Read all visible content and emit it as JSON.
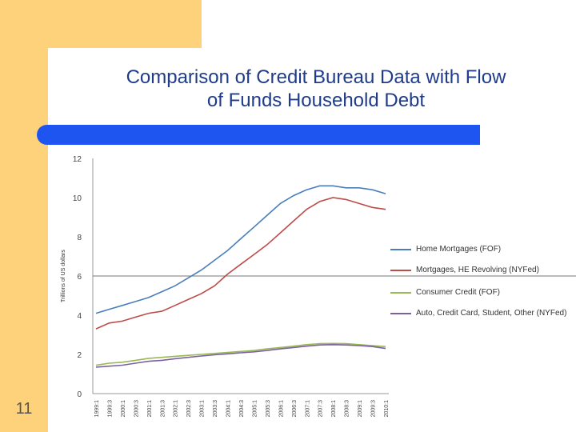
{
  "slide": {
    "title_line1": "Comparison of Credit Bureau Data with Flow",
    "title_line2": "of Funds Household Debt",
    "number": "11"
  },
  "colors": {
    "accent_yellow": "#fdd27a",
    "title_blue": "#1f3c8a",
    "rule_blue": "#1e55f0",
    "series_blue": "#4a7ebb",
    "series_red": "#be4b48",
    "series_green": "#98b954",
    "series_purple": "#7d60a0"
  },
  "chart_data": {
    "type": "line",
    "ylabel": "Trillions of US dollars",
    "ylim": [
      0,
      12
    ],
    "yticks": [
      0,
      2,
      4,
      6,
      8,
      10,
      12
    ],
    "grid": "single horizontal line at 6",
    "legend_position": "right",
    "categories": [
      "1999:1",
      "1999:3",
      "2000:1",
      "2000:3",
      "2001:1",
      "2001:3",
      "2002:1",
      "2002:3",
      "2003:1",
      "2003:3",
      "2004:1",
      "2004:3",
      "2005:1",
      "2005:3",
      "2006:1",
      "2006:3",
      "2007:1",
      "2007:3",
      "2008:1",
      "2008:3",
      "2009:1",
      "2009:3",
      "2010:1"
    ],
    "series": [
      {
        "name": "Home Mortgages (FOF)",
        "color": "#4a7ebb",
        "values": [
          4.1,
          4.3,
          4.5,
          4.7,
          4.9,
          5.2,
          5.5,
          5.9,
          6.3,
          6.8,
          7.3,
          7.9,
          8.5,
          9.1,
          9.7,
          10.1,
          10.4,
          10.6,
          10.6,
          10.5,
          10.5,
          10.4,
          10.2
        ]
      },
      {
        "name": "Mortgages, HE Revolving (NYFed)",
        "color": "#be4b48",
        "values": [
          3.3,
          3.6,
          3.7,
          3.9,
          4.1,
          4.2,
          4.5,
          4.8,
          5.1,
          5.5,
          6.1,
          6.6,
          7.1,
          7.6,
          8.2,
          8.8,
          9.4,
          9.8,
          10.0,
          9.9,
          9.7,
          9.5,
          9.4
        ]
      },
      {
        "name": "Consumer Credit (FOF)",
        "color": "#98b954",
        "values": [
          1.45,
          1.55,
          1.6,
          1.7,
          1.8,
          1.85,
          1.9,
          1.95,
          2.0,
          2.05,
          2.1,
          2.15,
          2.2,
          2.28,
          2.35,
          2.42,
          2.5,
          2.55,
          2.56,
          2.55,
          2.5,
          2.45,
          2.4
        ]
      },
      {
        "name": "Auto, Credit Card, Student, Other (NYFed)",
        "color": "#7d60a0",
        "values": [
          1.35,
          1.4,
          1.45,
          1.55,
          1.65,
          1.7,
          1.78,
          1.85,
          1.92,
          1.98,
          2.03,
          2.08,
          2.13,
          2.2,
          2.28,
          2.35,
          2.42,
          2.48,
          2.5,
          2.48,
          2.45,
          2.4,
          2.3
        ]
      }
    ]
  }
}
